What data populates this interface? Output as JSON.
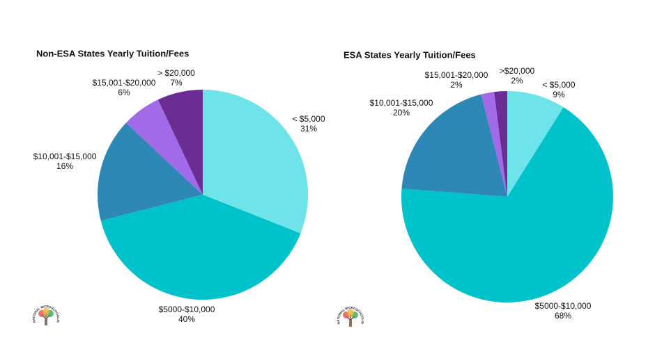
{
  "chart_data": [
    {
      "type": "pie",
      "title": "Non-ESA States Yearly Tuition/Fees",
      "categories": [
        "< $5,000",
        "$5000-$10,000",
        "$10,001-$15,000",
        "$15,001-$20,000",
        "> $20,000"
      ],
      "values": [
        31,
        40,
        16,
        6,
        7
      ],
      "value_labels": [
        "31%",
        "40%",
        "16%",
        "6%",
        "7%"
      ],
      "colors": [
        "#6ee3e9",
        "#00c2cb",
        "#2e88b6",
        "#a06ae9",
        "#6b2d93"
      ]
    },
    {
      "type": "pie",
      "title": "ESA States Yearly Tuition/Fees",
      "categories": [
        "< $5,000",
        "$5000-$10,000",
        "$10,001-$15,000",
        "$15,001-$20,000",
        ">$20,000"
      ],
      "values": [
        9,
        68,
        20,
        2,
        2
      ],
      "value_labels": [
        "9%",
        "68%",
        "20%",
        "2%",
        "2%"
      ],
      "colors": [
        "#6ee3e9",
        "#00c2cb",
        "#2e88b6",
        "#a06ae9",
        "#6b2d93"
      ]
    }
  ],
  "logo_text": "NATIONAL MICROSCHOOLING CENTER"
}
